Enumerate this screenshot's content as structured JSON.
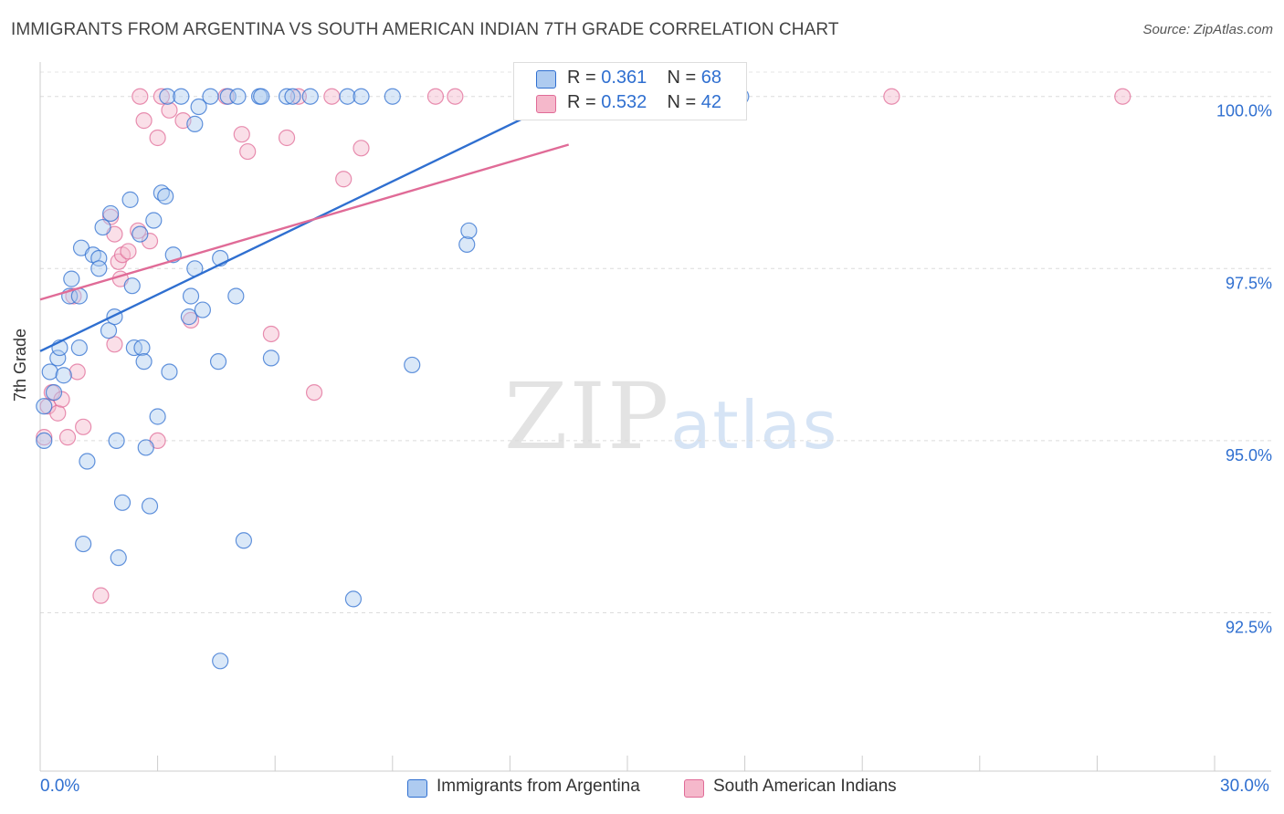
{
  "title": "IMMIGRANTS FROM ARGENTINA VS SOUTH AMERICAN INDIAN 7TH GRADE CORRELATION CHART",
  "source": "Source: ZipAtlas.com",
  "watermark": {
    "zip": "ZIP",
    "atlas": "atlas"
  },
  "colors": {
    "blue": "#2f6fd0",
    "blue_fill": "#aecbf0",
    "pink": "#e06b97",
    "pink_fill": "#f5b8cb",
    "axis_text": "#2f6fd0"
  },
  "chart_data": {
    "type": "scatter",
    "title": "IMMIGRANTS FROM ARGENTINA VS SOUTH AMERICAN INDIAN 7TH GRADE CORRELATION CHART",
    "xlabel": "",
    "ylabel": "7th Grade",
    "xlim": [
      0,
      30
    ],
    "ylim": [
      90.2,
      100.5
    ],
    "x_tick_labels": {
      "min": "0.0%",
      "max": "30.0%"
    },
    "y_ticks": [
      {
        "value": 92.5,
        "label": "92.5%"
      },
      {
        "value": 95.0,
        "label": "95.0%"
      },
      {
        "value": 97.5,
        "label": "97.5%"
      },
      {
        "value": 100.0,
        "label": "100.0%"
      }
    ],
    "legend": [
      {
        "name": "Immigrants from Argentina",
        "r_label": "R = ",
        "r": "0.361",
        "n_label": "N = ",
        "n": "68"
      },
      {
        "name": "South American Indians",
        "r_label": "R = ",
        "r": "0.532",
        "n_label": "N = ",
        "n": "42"
      }
    ],
    "series": [
      {
        "name": "Immigrants from Argentina",
        "color": "blue",
        "trend": {
          "x": [
            0,
            13.5
          ],
          "y": [
            96.3,
            100.0
          ]
        },
        "points": [
          [
            0.1,
            95.5
          ],
          [
            0.1,
            95.0
          ],
          [
            0.25,
            96.0
          ],
          [
            0.35,
            95.7
          ],
          [
            0.45,
            96.2
          ],
          [
            0.5,
            96.35
          ],
          [
            0.6,
            95.95
          ],
          [
            0.75,
            97.1
          ],
          [
            0.8,
            97.35
          ],
          [
            1.0,
            97.1
          ],
          [
            1.0,
            96.35
          ],
          [
            1.05,
            97.8
          ],
          [
            1.1,
            93.5
          ],
          [
            1.2,
            94.7
          ],
          [
            1.35,
            97.7
          ],
          [
            1.5,
            97.65
          ],
          [
            1.5,
            97.5
          ],
          [
            1.6,
            98.1
          ],
          [
            1.75,
            96.6
          ],
          [
            1.8,
            98.3
          ],
          [
            1.9,
            96.8
          ],
          [
            1.95,
            95.0
          ],
          [
            2.0,
            93.3
          ],
          [
            2.1,
            94.1
          ],
          [
            2.3,
            98.5
          ],
          [
            2.35,
            97.25
          ],
          [
            2.4,
            96.35
          ],
          [
            2.55,
            98.0
          ],
          [
            2.6,
            96.35
          ],
          [
            2.65,
            96.15
          ],
          [
            2.7,
            94.9
          ],
          [
            2.8,
            94.05
          ],
          [
            2.9,
            98.2
          ],
          [
            3.0,
            95.35
          ],
          [
            3.1,
            98.6
          ],
          [
            3.2,
            98.55
          ],
          [
            3.25,
            100.0
          ],
          [
            3.3,
            96.0
          ],
          [
            3.4,
            97.7
          ],
          [
            3.6,
            100.0
          ],
          [
            3.8,
            96.8
          ],
          [
            3.85,
            97.1
          ],
          [
            3.95,
            97.5
          ],
          [
            3.95,
            99.6
          ],
          [
            4.05,
            99.85
          ],
          [
            4.15,
            96.9
          ],
          [
            4.35,
            100.0
          ],
          [
            4.55,
            96.15
          ],
          [
            4.6,
            97.65
          ],
          [
            4.6,
            91.8
          ],
          [
            4.8,
            100.0
          ],
          [
            5.0,
            97.1
          ],
          [
            5.05,
            100.0
          ],
          [
            5.2,
            93.55
          ],
          [
            5.6,
            100.0
          ],
          [
            5.65,
            100.0
          ],
          [
            5.9,
            96.2
          ],
          [
            6.3,
            100.0
          ],
          [
            6.45,
            100.0
          ],
          [
            6.9,
            100.0
          ],
          [
            7.85,
            100.0
          ],
          [
            8.0,
            92.7
          ],
          [
            8.2,
            100.0
          ],
          [
            9.0,
            100.0
          ],
          [
            9.5,
            96.1
          ],
          [
            10.9,
            97.85
          ],
          [
            10.95,
            98.05
          ],
          [
            17.9,
            100.0
          ]
        ]
      },
      {
        "name": "South American Indians",
        "color": "pink",
        "trend": {
          "x": [
            0,
            13.5
          ],
          "y": [
            97.05,
            99.3
          ]
        },
        "points": [
          [
            0.1,
            95.05
          ],
          [
            0.2,
            95.5
          ],
          [
            0.3,
            95.7
          ],
          [
            0.45,
            95.4
          ],
          [
            0.55,
            95.6
          ],
          [
            0.7,
            95.05
          ],
          [
            0.85,
            97.1
          ],
          [
            0.95,
            96.0
          ],
          [
            1.1,
            95.2
          ],
          [
            1.55,
            92.75
          ],
          [
            1.8,
            98.25
          ],
          [
            1.9,
            96.4
          ],
          [
            1.9,
            98.0
          ],
          [
            2.0,
            97.6
          ],
          [
            2.05,
            97.35
          ],
          [
            2.1,
            97.7
          ],
          [
            2.25,
            97.75
          ],
          [
            2.5,
            98.05
          ],
          [
            2.55,
            100.0
          ],
          [
            2.65,
            99.65
          ],
          [
            2.8,
            97.9
          ],
          [
            3.0,
            99.4
          ],
          [
            3.0,
            95.0
          ],
          [
            3.1,
            100.0
          ],
          [
            3.3,
            99.8
          ],
          [
            3.65,
            99.65
          ],
          [
            3.85,
            96.75
          ],
          [
            4.75,
            100.0
          ],
          [
            5.15,
            99.45
          ],
          [
            5.3,
            99.2
          ],
          [
            5.9,
            96.55
          ],
          [
            6.3,
            99.4
          ],
          [
            6.6,
            100.0
          ],
          [
            7.0,
            95.7
          ],
          [
            7.45,
            100.0
          ],
          [
            7.75,
            98.8
          ],
          [
            8.2,
            99.25
          ],
          [
            10.1,
            100.0
          ],
          [
            10.6,
            100.0
          ],
          [
            21.75,
            100.0
          ],
          [
            27.65,
            100.0
          ],
          [
            12.9,
            100.0
          ]
        ]
      }
    ]
  }
}
